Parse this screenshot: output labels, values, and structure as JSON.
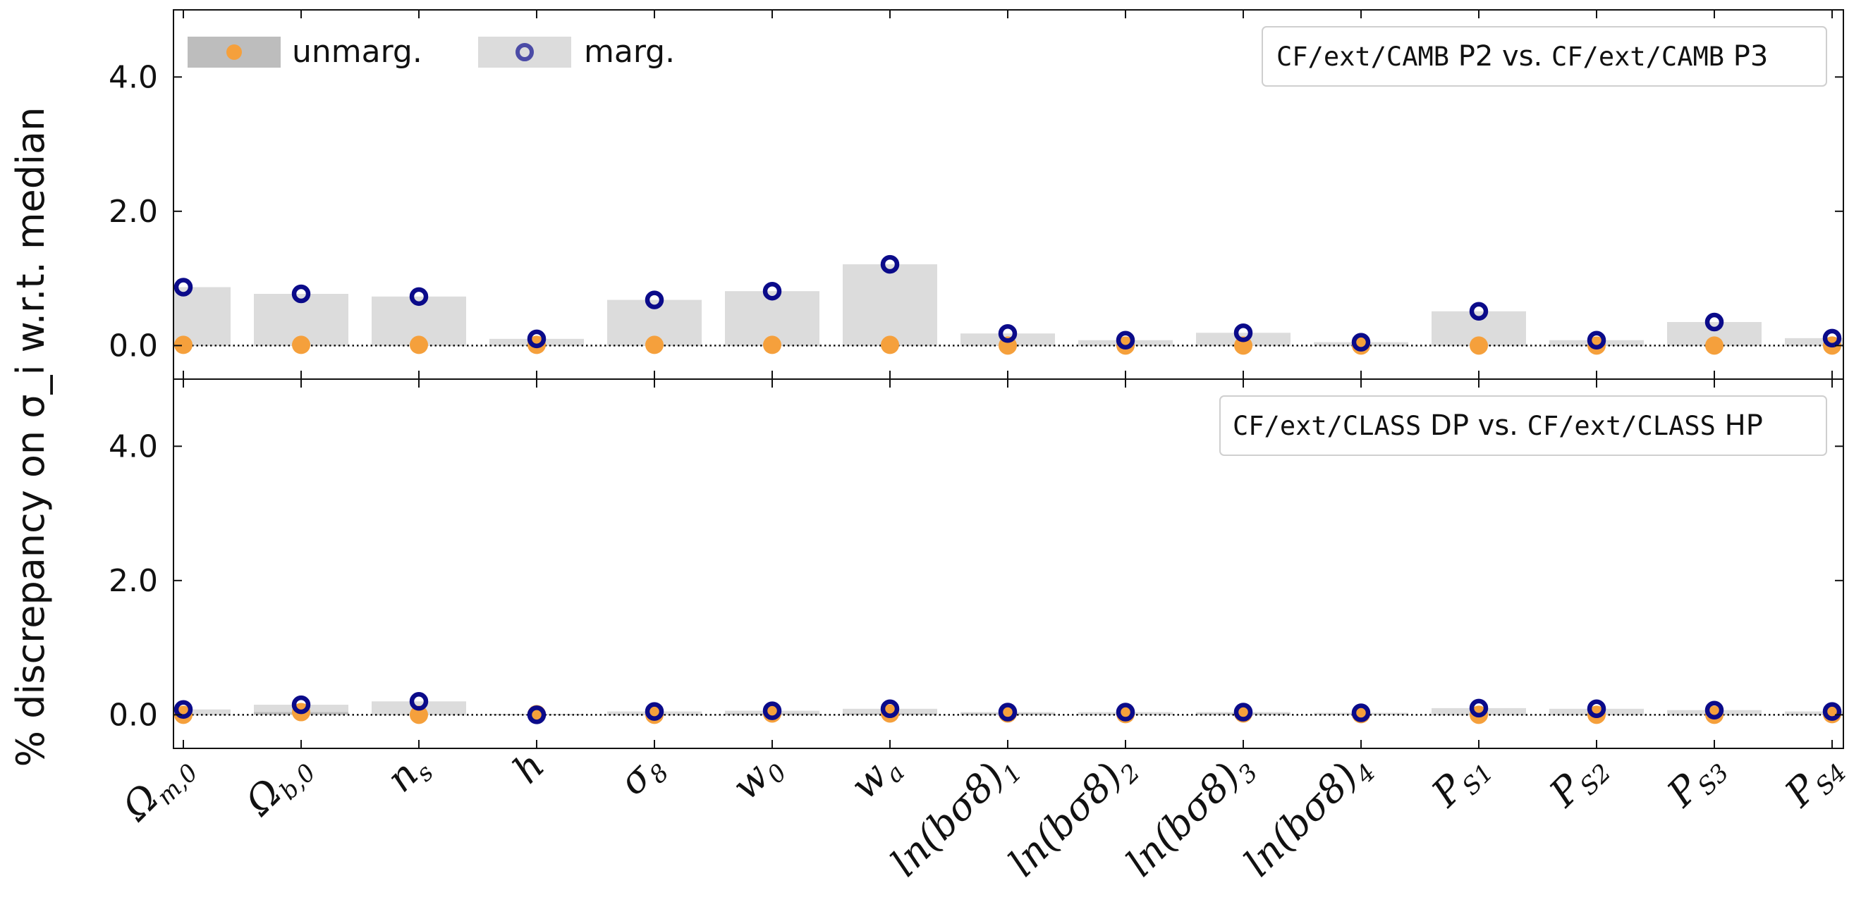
{
  "chart_data": {
    "type": "bar",
    "ylabel": "% discrepancy on σ_i w.r.t. median",
    "ylim": [
      -0.5,
      5.0
    ],
    "yticks": [
      0.0,
      2.0,
      4.0
    ],
    "ytick_labels": [
      "0.0",
      "2.0",
      "4.0"
    ],
    "categories": [
      {
        "base": "Ω",
        "sub": "m,0"
      },
      {
        "base": "Ω",
        "sub": "b,0"
      },
      {
        "base": "n",
        "sub": "s"
      },
      {
        "base": "h",
        "sub": ""
      },
      {
        "base": "σ",
        "sub": "8"
      },
      {
        "base": "w",
        "sub": "0"
      },
      {
        "base": "w",
        "sub": "a"
      },
      {
        "base": "ln(bσ8)",
        "sub": "1"
      },
      {
        "base": "ln(bσ8)",
        "sub": "2"
      },
      {
        "base": "ln(bσ8)",
        "sub": "3"
      },
      {
        "base": "ln(bσ8)",
        "sub": "4"
      },
      {
        "base": "P",
        "sub": "S1"
      },
      {
        "base": "P",
        "sub": "S2"
      },
      {
        "base": "P",
        "sub": "S3"
      },
      {
        "base": "P",
        "sub": "S4"
      }
    ],
    "legend": {
      "placement": "top-left",
      "entries": [
        {
          "label": "unmarg.",
          "bar_color": "#bdbdbd",
          "marker": "filled-circle",
          "marker_color": "#f5a03c"
        },
        {
          "label": "marg.",
          "bar_color": "#dcdcdc",
          "marker": "open-circle",
          "marker_color": "#4b4ba6"
        }
      ]
    },
    "panels": [
      {
        "title": {
          "code1": "CF/ext/CAMB",
          "text1": " P2 vs. ",
          "code2": "CF/ext/CAMB",
          "text2": " P3"
        },
        "unmarg_bars": [
          0.0,
          0.0,
          0.0,
          0.0,
          0.0,
          0.0,
          0.0,
          0.0,
          0.0,
          0.0,
          0.0,
          0.0,
          0.0,
          0.0,
          0.0
        ],
        "unmarg_points": [
          0.01,
          0.01,
          0.01,
          0.01,
          0.01,
          0.01,
          0.01,
          0.0,
          0.0,
          0.0,
          0.0,
          0.0,
          0.0,
          0.0,
          0.0
        ],
        "marg_bars": [
          0.87,
          0.77,
          0.73,
          0.1,
          0.68,
          0.81,
          1.21,
          0.18,
          0.08,
          0.19,
          0.05,
          0.51,
          0.08,
          0.35,
          0.11
        ],
        "marg_points": [
          0.87,
          0.77,
          0.73,
          0.1,
          0.68,
          0.81,
          1.21,
          0.18,
          0.08,
          0.19,
          0.05,
          0.51,
          0.08,
          0.35,
          0.11
        ]
      },
      {
        "title": {
          "code1": "CF/ext/CLASS",
          "text1": " DP vs. ",
          "code2": "CF/ext/CLASS",
          "text2": " HP"
        },
        "unmarg_bars": [
          0.0,
          0.04,
          0.0,
          0.01,
          0.0,
          0.02,
          0.02,
          0.02,
          0.01,
          0.02,
          0.01,
          0.0,
          0.0,
          0.0,
          0.01
        ],
        "unmarg_points": [
          0.0,
          0.04,
          0.0,
          0.01,
          0.0,
          0.02,
          0.02,
          0.02,
          0.01,
          0.02,
          0.01,
          0.0,
          0.0,
          0.0,
          0.01
        ],
        "marg_bars": [
          0.08,
          0.15,
          0.2,
          0.0,
          0.05,
          0.06,
          0.09,
          0.04,
          0.04,
          0.04,
          0.03,
          0.1,
          0.09,
          0.07,
          0.05
        ],
        "marg_points": [
          0.08,
          0.15,
          0.2,
          0.0,
          0.05,
          0.06,
          0.09,
          0.04,
          0.04,
          0.04,
          0.03,
          0.1,
          0.09,
          0.07,
          0.05
        ]
      }
    ],
    "grid": false,
    "zero_line": "dotted"
  }
}
